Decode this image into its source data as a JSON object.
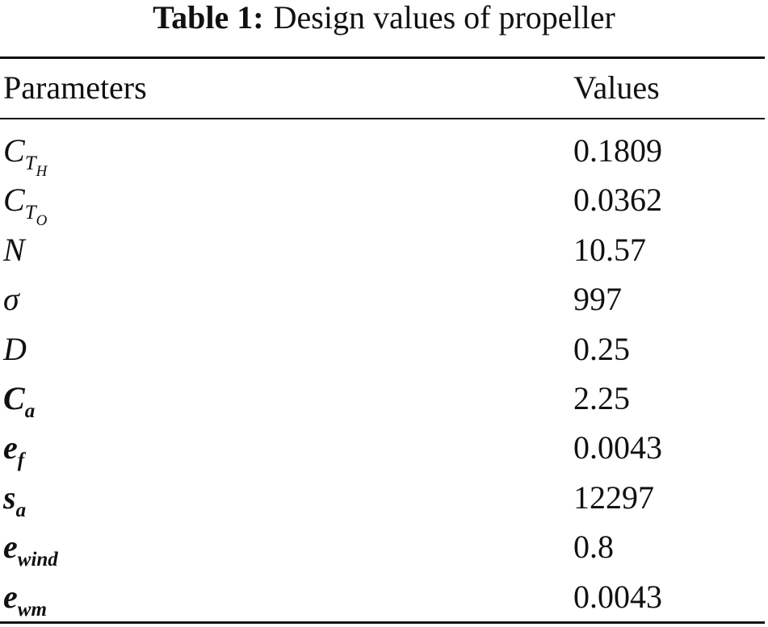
{
  "table": {
    "caption": {
      "label": "Table 1:",
      "text": "Design values of propeller"
    },
    "header": [
      "Parameters",
      "Values"
    ],
    "rows": [
      {
        "symbol": "C",
        "sub": "T",
        "subsub": "H",
        "value": 0.1809
      },
      {
        "symbol": "C",
        "sub": "T",
        "subsub": "O",
        "value": 0.0362
      },
      {
        "symbol": "N",
        "value": 10.57
      },
      {
        "symbol": "σ",
        "value": 997
      },
      {
        "symbol": "D",
        "value": 0.25
      },
      {
        "symbol": "C",
        "sub": "a",
        "value": 2.25
      },
      {
        "symbol": "e",
        "sub": "f",
        "value": 0.0043
      },
      {
        "symbol": "s",
        "sub": "a",
        "value": 12297
      },
      {
        "symbol": "e",
        "sub": "wind",
        "value": 0.8
      },
      {
        "symbol": "e",
        "sub": "wm",
        "value": 0.0043
      }
    ]
  }
}
